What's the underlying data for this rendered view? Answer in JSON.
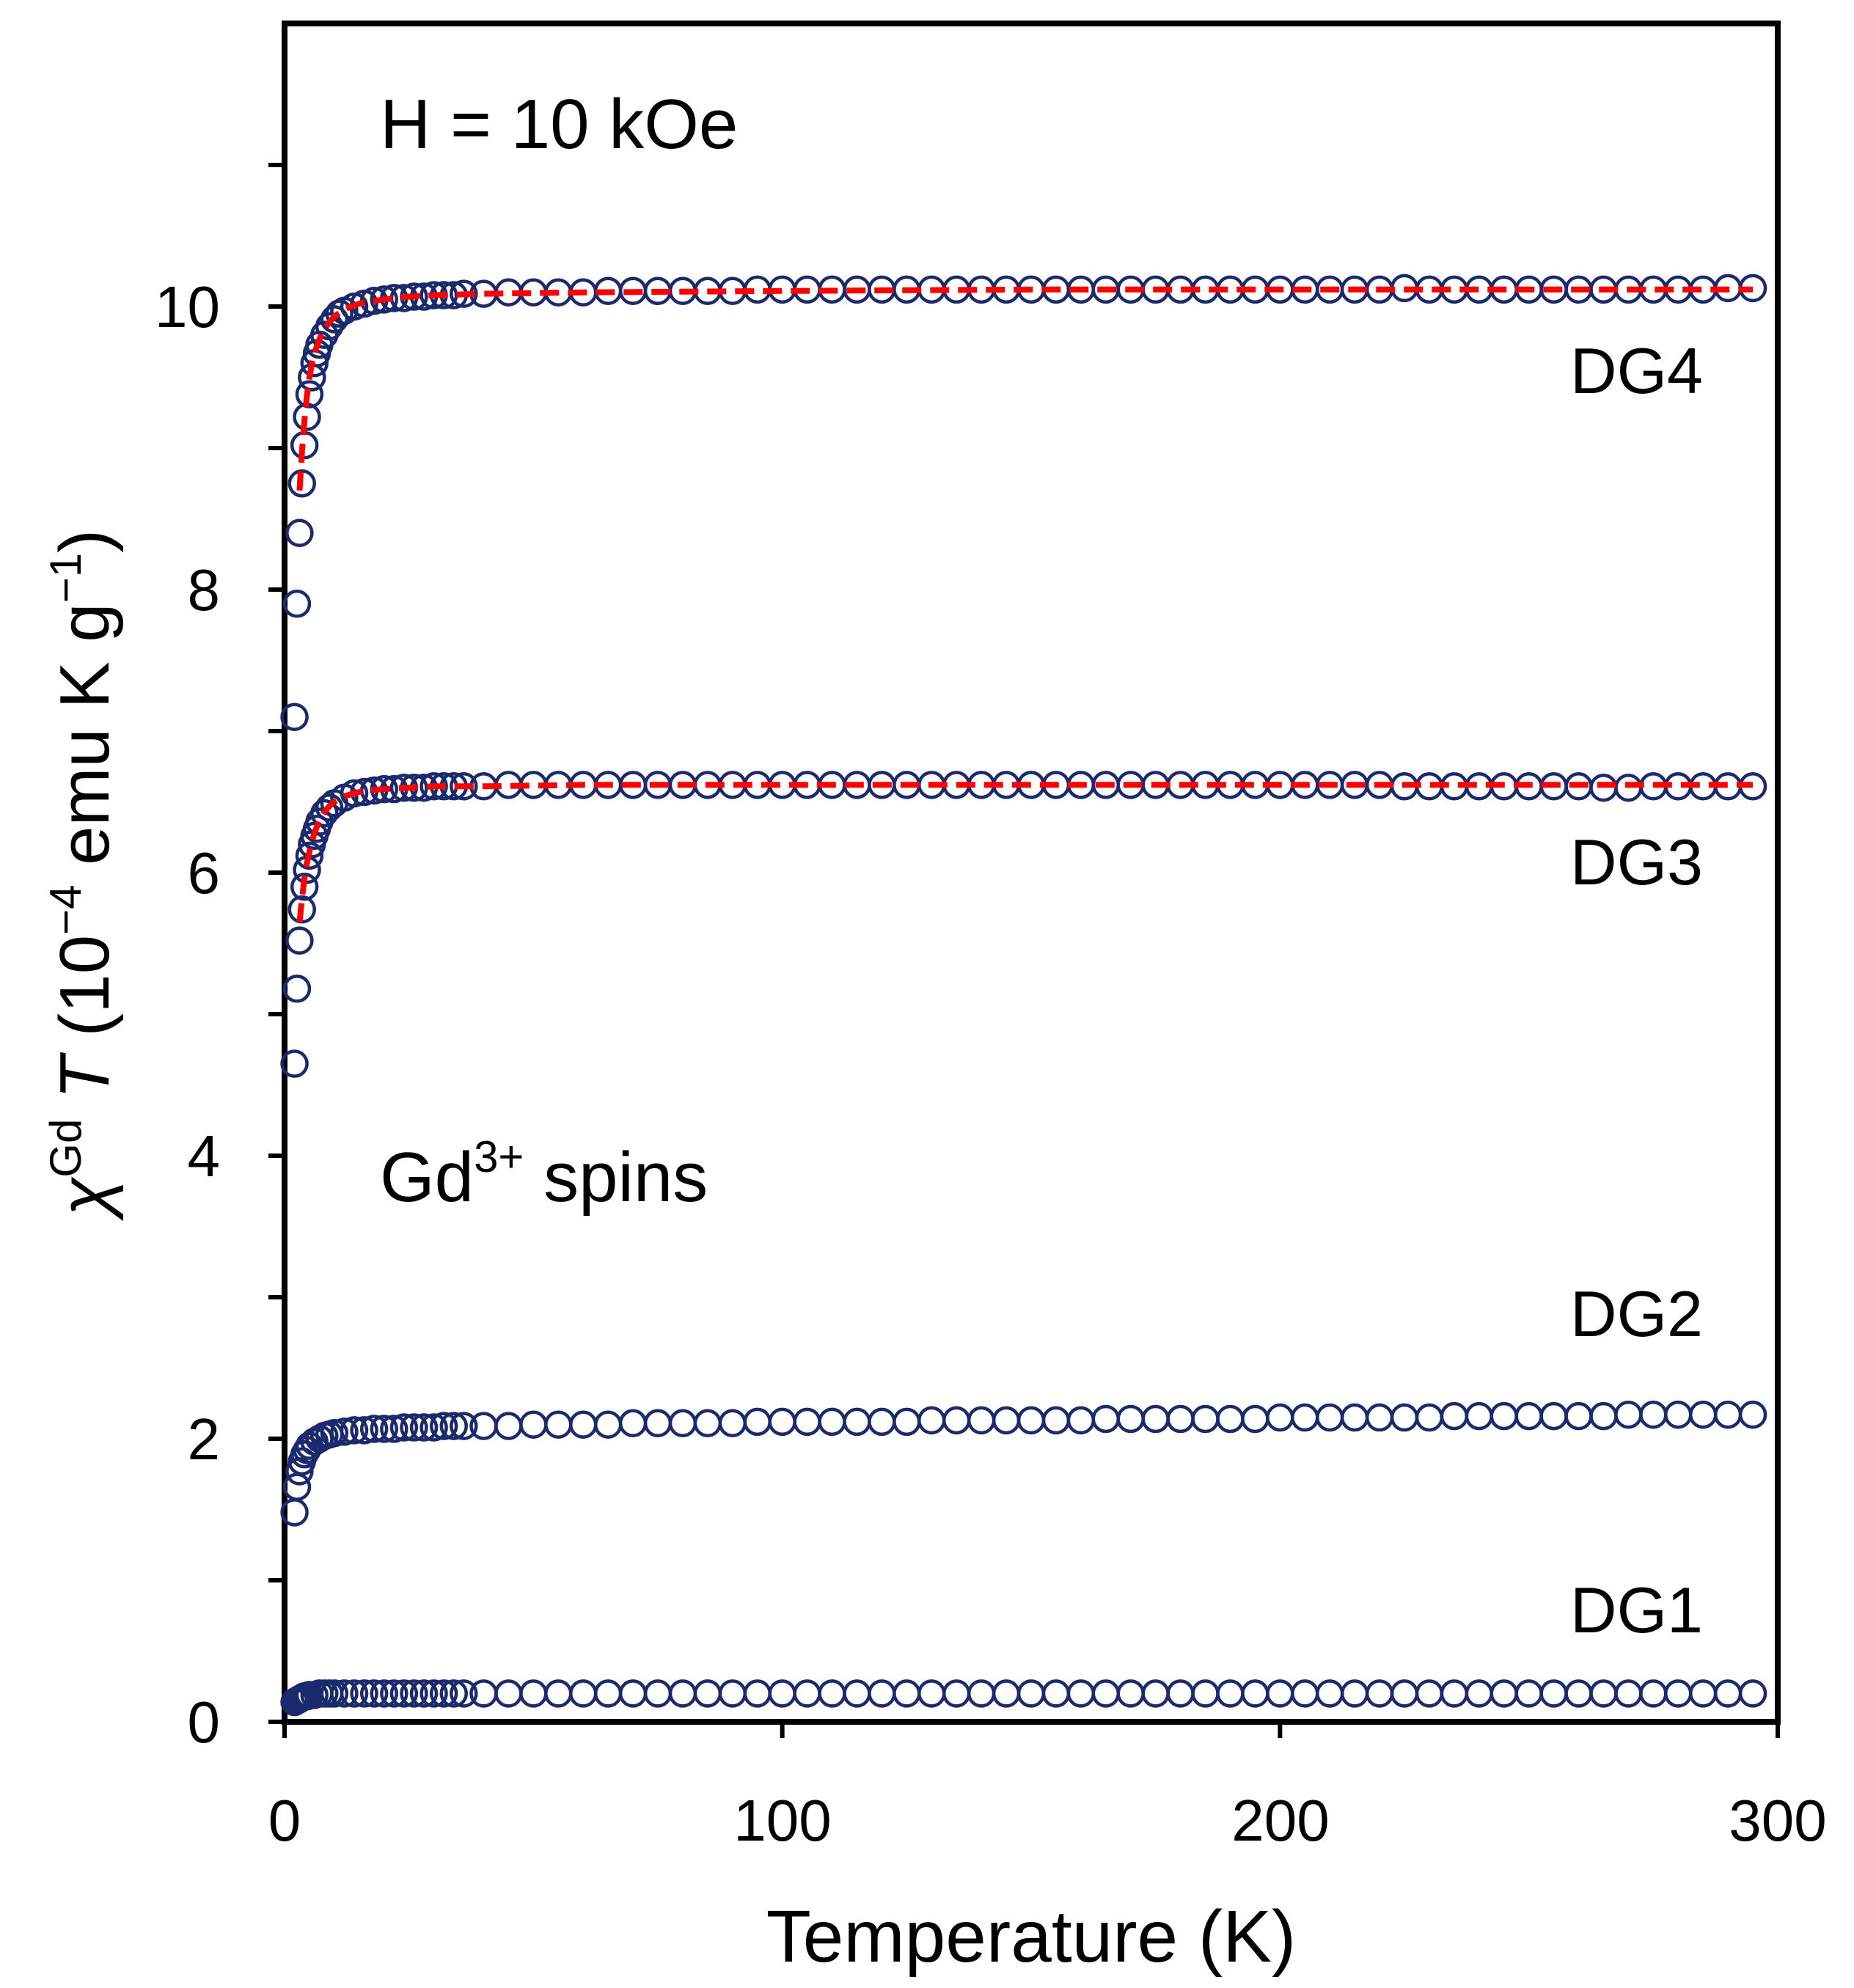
{
  "chart_data": {
    "type": "scatter",
    "title": "",
    "xlabel": "Temperature (K)",
    "ylabel": {
      "symbol": "χ",
      "symbol_superscript": "Gd",
      "variable": "T",
      "unit_prefix": "(10",
      "unit_exponent": "−4",
      "unit_mid": " emu K g",
      "unit_exponent2": "−1",
      "unit_suffix": ")"
    },
    "xlim": [
      0,
      300
    ],
    "ylim": [
      0,
      12
    ],
    "xticks": [
      0,
      100,
      200,
      300
    ],
    "yticks_labeled": [
      0,
      2,
      4,
      6,
      8,
      10
    ],
    "yticks_minor": [
      1,
      3,
      5,
      7,
      9,
      11
    ],
    "xtick_labels": [
      "0",
      "100",
      "200",
      "300"
    ],
    "ytick_labels": [
      "0",
      "2",
      "4",
      "6",
      "8",
      "10"
    ],
    "grid": false,
    "marker": "open-circle",
    "marker_color": "#1a2a6c",
    "fit_color": "#ff0000",
    "annotations": {
      "field": "H = 10 kOe",
      "spins_prefix": "Gd",
      "spins_superscript": "3+",
      "spins_suffix": " spins"
    },
    "series": [
      {
        "name": "DG1",
        "label": "DG1",
        "fit": false,
        "x": [
          2,
          2.5,
          3,
          3.5,
          4,
          4.5,
          5,
          6,
          7,
          8,
          9,
          10,
          12,
          14,
          16,
          18,
          20,
          22,
          24,
          26,
          28,
          30,
          32,
          34,
          36,
          40,
          45,
          50,
          55,
          60,
          65,
          70,
          75,
          80,
          85,
          90,
          95,
          100,
          105,
          110,
          115,
          120,
          125,
          130,
          135,
          140,
          145,
          150,
          155,
          160,
          165,
          170,
          175,
          180,
          185,
          190,
          195,
          200,
          205,
          210,
          215,
          220,
          225,
          230,
          235,
          240,
          245,
          250,
          255,
          260,
          265,
          270,
          275,
          280,
          285,
          290,
          295
        ],
        "y": [
          0.14,
          0.15,
          0.16,
          0.17,
          0.18,
          0.18,
          0.19,
          0.19,
          0.2,
          0.2,
          0.2,
          0.2,
          0.2,
          0.2,
          0.2,
          0.2,
          0.2,
          0.2,
          0.2,
          0.2,
          0.2,
          0.2,
          0.2,
          0.2,
          0.2,
          0.2,
          0.2,
          0.2,
          0.2,
          0.2,
          0.2,
          0.2,
          0.2,
          0.2,
          0.2,
          0.2,
          0.2,
          0.2,
          0.2,
          0.2,
          0.2,
          0.2,
          0.2,
          0.2,
          0.2,
          0.2,
          0.2,
          0.2,
          0.2,
          0.2,
          0.2,
          0.2,
          0.2,
          0.2,
          0.2,
          0.2,
          0.2,
          0.2,
          0.2,
          0.2,
          0.2,
          0.2,
          0.2,
          0.2,
          0.2,
          0.2,
          0.2,
          0.2,
          0.2,
          0.2,
          0.2,
          0.2,
          0.2,
          0.2,
          0.2,
          0.2,
          0.2
        ]
      },
      {
        "name": "DG2",
        "label": "DG2",
        "fit": false,
        "x": [
          2,
          2.5,
          3,
          3.5,
          4,
          4.5,
          5,
          6,
          7,
          8,
          9,
          10,
          12,
          14,
          16,
          18,
          20,
          22,
          24,
          26,
          28,
          30,
          32,
          34,
          36,
          40,
          45,
          50,
          55,
          60,
          65,
          70,
          75,
          80,
          85,
          90,
          95,
          100,
          105,
          110,
          115,
          120,
          125,
          130,
          135,
          140,
          145,
          150,
          155,
          160,
          165,
          170,
          175,
          180,
          185,
          190,
          195,
          200,
          205,
          210,
          215,
          220,
          225,
          230,
          235,
          240,
          245,
          250,
          255,
          260,
          265,
          270,
          275,
          280,
          285,
          290,
          295
        ],
        "y": [
          1.48,
          1.66,
          1.77,
          1.84,
          1.89,
          1.92,
          1.95,
          1.98,
          2.0,
          2.02,
          2.03,
          2.04,
          2.05,
          2.06,
          2.06,
          2.07,
          2.07,
          2.07,
          2.08,
          2.08,
          2.08,
          2.08,
          2.09,
          2.09,
          2.09,
          2.09,
          2.09,
          2.1,
          2.1,
          2.1,
          2.1,
          2.11,
          2.11,
          2.11,
          2.11,
          2.11,
          2.12,
          2.12,
          2.12,
          2.12,
          2.12,
          2.12,
          2.12,
          2.13,
          2.13,
          2.13,
          2.13,
          2.13,
          2.13,
          2.13,
          2.14,
          2.14,
          2.14,
          2.14,
          2.14,
          2.14,
          2.14,
          2.15,
          2.15,
          2.15,
          2.15,
          2.15,
          2.15,
          2.15,
          2.16,
          2.16,
          2.16,
          2.16,
          2.16,
          2.16,
          2.16,
          2.17,
          2.17,
          2.17,
          2.17,
          2.17,
          2.17
        ]
      },
      {
        "name": "DG3",
        "label": "DG3",
        "fit": true,
        "x": [
          2,
          2.5,
          3,
          3.5,
          4,
          4.5,
          5,
          5.5,
          6,
          6.5,
          7,
          8,
          9,
          10,
          12,
          14,
          16,
          18,
          20,
          22,
          24,
          26,
          28,
          30,
          32,
          34,
          36,
          40,
          45,
          50,
          55,
          60,
          65,
          70,
          75,
          80,
          85,
          90,
          95,
          100,
          105,
          110,
          115,
          120,
          125,
          130,
          135,
          140,
          145,
          150,
          155,
          160,
          165,
          170,
          175,
          180,
          185,
          190,
          195,
          200,
          205,
          210,
          215,
          220,
          225,
          230,
          235,
          240,
          245,
          250,
          255,
          260,
          265,
          270,
          275,
          280,
          285,
          290,
          295
        ],
        "y": [
          4.65,
          5.18,
          5.52,
          5.74,
          5.9,
          6.02,
          6.12,
          6.2,
          6.26,
          6.31,
          6.36,
          6.42,
          6.46,
          6.49,
          6.53,
          6.56,
          6.57,
          6.58,
          6.59,
          6.59,
          6.6,
          6.6,
          6.6,
          6.61,
          6.61,
          6.61,
          6.61,
          6.61,
          6.62,
          6.62,
          6.62,
          6.62,
          6.62,
          6.62,
          6.62,
          6.62,
          6.62,
          6.62,
          6.62,
          6.62,
          6.62,
          6.62,
          6.62,
          6.62,
          6.62,
          6.62,
          6.62,
          6.62,
          6.62,
          6.62,
          6.62,
          6.62,
          6.62,
          6.62,
          6.62,
          6.62,
          6.62,
          6.62,
          6.62,
          6.62,
          6.62,
          6.62,
          6.62,
          6.62,
          6.61,
          6.61,
          6.61,
          6.61,
          6.61,
          6.61,
          6.61,
          6.61,
          6.6,
          6.6,
          6.61,
          6.61,
          6.61,
          6.61,
          6.61
        ],
        "fit_x": [
          3,
          3.5,
          4,
          4.5,
          5,
          5.5,
          6,
          7,
          8,
          9,
          10,
          12,
          14,
          16,
          20,
          25,
          30,
          40,
          60,
          100,
          150,
          200,
          250,
          295
        ],
        "fit_y": [
          5.65,
          5.82,
          5.96,
          6.07,
          6.15,
          6.22,
          6.28,
          6.37,
          6.43,
          6.47,
          6.5,
          6.54,
          6.56,
          6.58,
          6.59,
          6.6,
          6.61,
          6.61,
          6.62,
          6.62,
          6.62,
          6.62,
          6.62,
          6.62
        ]
      },
      {
        "name": "DG4",
        "label": "DG4",
        "fit": true,
        "x": [
          2,
          2.5,
          3,
          3.5,
          4,
          4.5,
          5,
          5.5,
          6,
          6.5,
          7,
          8,
          9,
          10,
          11,
          12,
          14,
          16,
          18,
          20,
          22,
          24,
          26,
          28,
          30,
          32,
          34,
          36,
          40,
          45,
          50,
          55,
          60,
          65,
          70,
          75,
          80,
          85,
          90,
          95,
          100,
          105,
          110,
          115,
          120,
          125,
          130,
          135,
          140,
          145,
          150,
          155,
          160,
          165,
          170,
          175,
          180,
          185,
          190,
          195,
          200,
          205,
          210,
          215,
          220,
          225,
          230,
          235,
          240,
          245,
          250,
          255,
          260,
          265,
          270,
          275,
          280,
          285,
          290,
          295
        ],
        "y": [
          7.1,
          7.9,
          8.4,
          8.75,
          9.02,
          9.22,
          9.38,
          9.5,
          9.6,
          9.67,
          9.73,
          9.8,
          9.86,
          9.91,
          9.95,
          9.97,
          10.0,
          10.02,
          10.04,
          10.05,
          10.06,
          10.06,
          10.07,
          10.07,
          10.08,
          10.08,
          10.08,
          10.09,
          10.09,
          10.1,
          10.1,
          10.1,
          10.1,
          10.11,
          10.11,
          10.11,
          10.11,
          10.11,
          10.11,
          10.12,
          10.12,
          10.12,
          10.12,
          10.12,
          10.12,
          10.12,
          10.12,
          10.12,
          10.12,
          10.12,
          10.12,
          10.12,
          10.12,
          10.12,
          10.12,
          10.12,
          10.12,
          10.12,
          10.12,
          10.12,
          10.12,
          10.12,
          10.12,
          10.12,
          10.12,
          10.13,
          10.12,
          10.12,
          10.12,
          10.12,
          10.12,
          10.12,
          10.12,
          10.12,
          10.12,
          10.12,
          10.12,
          10.12,
          10.13,
          10.13
        ],
        "fit_x": [
          3,
          3.5,
          4,
          4.5,
          5,
          5.5,
          6,
          7,
          8,
          9,
          10,
          12,
          14,
          16,
          20,
          25,
          30,
          40,
          60,
          100,
          150,
          200,
          250,
          295
        ],
        "fit_y": [
          8.7,
          8.98,
          9.2,
          9.37,
          9.5,
          9.6,
          9.67,
          9.77,
          9.84,
          9.89,
          9.93,
          9.98,
          10.01,
          10.03,
          10.05,
          10.07,
          10.08,
          10.09,
          10.1,
          10.11,
          10.12,
          10.12,
          10.12,
          10.12
        ]
      }
    ]
  }
}
